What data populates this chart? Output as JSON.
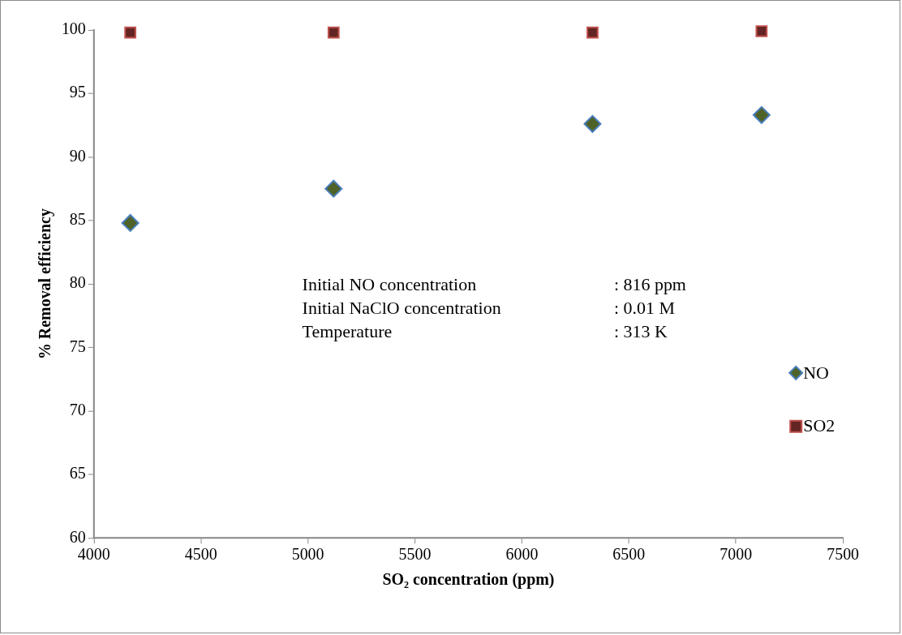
{
  "chart_data": {
    "type": "scatter",
    "xlabel": "SO₂ concentration (ppm)",
    "ylabel": "% Removal efficiency",
    "x": [
      4170,
      5120,
      6330,
      7120
    ],
    "series": [
      {
        "name": "NO",
        "color": "#4f6228",
        "marker": "diamond",
        "values": [
          84.8,
          87.5,
          92.6,
          93.3
        ]
      },
      {
        "name": "SO2",
        "color": "#632523",
        "marker": "square",
        "values": [
          99.8,
          99.8,
          99.8,
          99.9
        ]
      }
    ],
    "xlim": [
      4000,
      7500
    ],
    "xticks": [
      4000,
      4500,
      5000,
      5500,
      6000,
      6500,
      7000,
      7500
    ],
    "ylim": [
      60,
      100
    ],
    "yticks": [
      60,
      65,
      70,
      75,
      80,
      85,
      90,
      95,
      100
    ],
    "grid": false,
    "legend": "right",
    "annotations": [
      "Initial NO concentration : 816 ppm",
      "Initial NaClO concentration : 0.01 M",
      "Temperature : 313 K"
    ]
  }
}
